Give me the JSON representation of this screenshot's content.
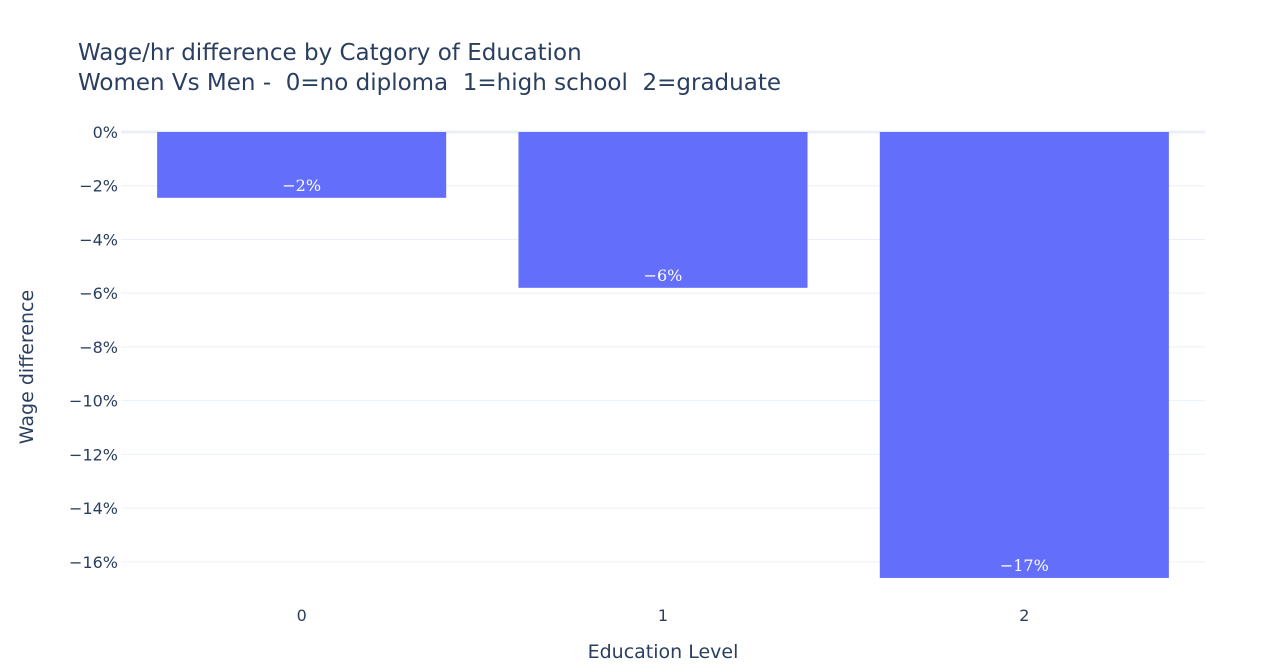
{
  "chart_data": {
    "type": "bar",
    "title": "Wage/hr difference by Catgory of Education",
    "subtitle": "Women Vs Men -  0=no diploma  1=high school  2=graduate",
    "xlabel": "Education Level",
    "ylabel": "Wage difference",
    "categories": [
      "0",
      "1",
      "2"
    ],
    "values": [
      -2.45,
      -5.8,
      -16.6
    ],
    "data_labels": [
      "−2%",
      "−6%",
      "−17%"
    ],
    "ylim": [
      -16.9,
      0
    ],
    "yticks": [
      0,
      -2,
      -4,
      -6,
      -8,
      -10,
      -12,
      -14,
      -16
    ],
    "ytick_labels": [
      "0%",
      "−2%",
      "−4%",
      "−6%",
      "−8%",
      "−10%",
      "−12%",
      "−14%",
      "−16%"
    ],
    "grid": true,
    "bar_color": "#636efa",
    "grid_color": "#ebf0f8",
    "text_color": "#2a3f5f"
  }
}
